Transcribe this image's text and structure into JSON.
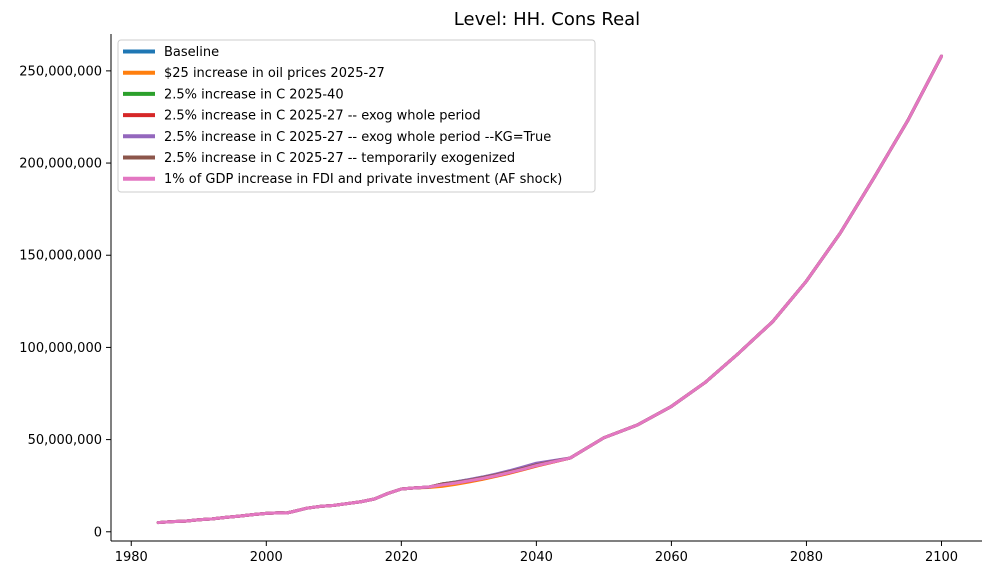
{
  "chart_data": {
    "type": "line",
    "title": "Level: HH. Cons Real",
    "xlabel": "",
    "ylabel": "",
    "xlim": [
      1977,
      2106
    ],
    "ylim": [
      -5000000,
      270000000
    ],
    "x_ticks": [
      1980,
      2000,
      2020,
      2040,
      2060,
      2080,
      2100
    ],
    "x_tick_labels": [
      "1980",
      "2000",
      "2020",
      "2040",
      "2060",
      "2080",
      "2100"
    ],
    "y_ticks": [
      0,
      50000000,
      100000000,
      150000000,
      200000000,
      250000000
    ],
    "y_tick_labels": [
      "0",
      "50,000,000",
      "100,000,000",
      "150,000,000",
      "200,000,000",
      "250,000,000"
    ],
    "grid": false,
    "legend_position": "upper-left",
    "x": [
      1984,
      1986,
      1988,
      1990,
      1992,
      1994,
      1996,
      1998,
      2000,
      2002,
      2003,
      2004,
      2006,
      2008,
      2010,
      2012,
      2014,
      2016,
      2018,
      2020,
      2022,
      2024,
      2026,
      2028,
      2030,
      2032,
      2034,
      2036,
      2038,
      2040,
      2045,
      2050,
      2055,
      2060,
      2065,
      2070,
      2075,
      2080,
      2085,
      2090,
      2095,
      2100
    ],
    "series": [
      {
        "name": "Baseline",
        "color": "#1f77b4",
        "values": [
          5000000,
          5500000,
          5800000,
          6500000,
          7000000,
          7800000,
          8500000,
          9300000,
          10000000,
          10300000,
          10200000,
          11000000,
          12800000,
          13800000,
          14300000,
          15300000,
          16300000,
          17800000,
          20800000,
          23200000,
          23800000,
          24200000,
          25300000,
          26300000,
          27500000,
          28800000,
          30300000,
          32000000,
          33800000,
          35800000,
          40000000,
          51000000,
          58000000,
          68000000,
          81000000,
          97000000,
          114000000,
          136000000,
          162000000,
          192000000,
          223000000,
          258000000
        ]
      },
      {
        "name": "$25 increase in oil prices 2025-27",
        "color": "#ff7f0e",
        "values": [
          5000000,
          5500000,
          5800000,
          6500000,
          7000000,
          7800000,
          8500000,
          9300000,
          10000000,
          10300000,
          10200000,
          11000000,
          12800000,
          13800000,
          14300000,
          15300000,
          16300000,
          17800000,
          20800000,
          23200000,
          23800000,
          24000000,
          24600000,
          25700000,
          27000000,
          28400000,
          30000000,
          31700000,
          33600000,
          35600000,
          40000000,
          51000000,
          58000000,
          68000000,
          81000000,
          97000000,
          114000000,
          136000000,
          162000000,
          192000000,
          223000000,
          258000000
        ]
      },
      {
        "name": "2.5% increase in C 2025-40",
        "color": "#2ca02c",
        "values": [
          5000000,
          5500000,
          5800000,
          6500000,
          7000000,
          7800000,
          8500000,
          9300000,
          10000000,
          10300000,
          10200000,
          11000000,
          12800000,
          13800000,
          14300000,
          15300000,
          16300000,
          17800000,
          20800000,
          23200000,
          23800000,
          24200000,
          25900000,
          27000000,
          28200000,
          29600000,
          31100000,
          32800000,
          34700000,
          36700000,
          40000000,
          51000000,
          58000000,
          68000000,
          81000000,
          97000000,
          114000000,
          136000000,
          162000000,
          192000000,
          223000000,
          258000000
        ]
      },
      {
        "name": "2.5% increase in C 2025-27 -- exog whole period",
        "color": "#d62728",
        "values": [
          5000000,
          5500000,
          5800000,
          6500000,
          7000000,
          7800000,
          8500000,
          9300000,
          10000000,
          10300000,
          10200000,
          11000000,
          12800000,
          13800000,
          14300000,
          15300000,
          16300000,
          17800000,
          20800000,
          23200000,
          23800000,
          24200000,
          25900000,
          26500000,
          27500000,
          28800000,
          30300000,
          32000000,
          33800000,
          35800000,
          40000000,
          51000000,
          58000000,
          68000000,
          81000000,
          97000000,
          114000000,
          136000000,
          162000000,
          192000000,
          223000000,
          258000000
        ]
      },
      {
        "name": "2.5% increase in C 2025-27 -- exog whole period --KG=True",
        "color": "#9467bd",
        "values": [
          5000000,
          5500000,
          5800000,
          6500000,
          7000000,
          7800000,
          8500000,
          9300000,
          10000000,
          10300000,
          10200000,
          11000000,
          12800000,
          13800000,
          14300000,
          15300000,
          16300000,
          17800000,
          20800000,
          23200000,
          23800000,
          24200000,
          25900000,
          27000000,
          28300000,
          29700000,
          31300000,
          33100000,
          35100000,
          37200000,
          40000000,
          51000000,
          58000000,
          68000000,
          81000000,
          97000000,
          114000000,
          136000000,
          162000000,
          192000000,
          223000000,
          258000000
        ]
      },
      {
        "name": "2.5% increase in C 2025-27 -- temporarily exogenized",
        "color": "#8c564b",
        "values": [
          5000000,
          5500000,
          5800000,
          6500000,
          7000000,
          7800000,
          8500000,
          9300000,
          10000000,
          10300000,
          10200000,
          11000000,
          12800000,
          13800000,
          14300000,
          15300000,
          16300000,
          17800000,
          20800000,
          23200000,
          23800000,
          24200000,
          25900000,
          26800000,
          27900000,
          29300000,
          30800000,
          32500000,
          34300000,
          36300000,
          40000000,
          51000000,
          58000000,
          68000000,
          81000000,
          97000000,
          114000000,
          136000000,
          162000000,
          192000000,
          223000000,
          258000000
        ]
      },
      {
        "name": "1% of GDP increase in FDI and private investment (AF shock)",
        "color": "#e377c2",
        "values": [
          5000000,
          5500000,
          5800000,
          6500000,
          7000000,
          7800000,
          8500000,
          9300000,
          10000000,
          10300000,
          10200000,
          11000000,
          12800000,
          13800000,
          14300000,
          15300000,
          16300000,
          17800000,
          20800000,
          23200000,
          23800000,
          24300000,
          25400000,
          26400000,
          27600000,
          28900000,
          30400000,
          32100000,
          33900000,
          35900000,
          40000000,
          51000000,
          58000000,
          68000000,
          81000000,
          97000000,
          114000000,
          136000000,
          162000000,
          192000000,
          223000000,
          258000000
        ]
      }
    ]
  }
}
